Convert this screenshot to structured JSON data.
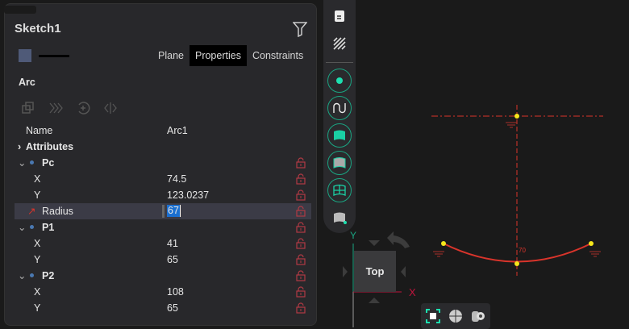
{
  "panel": {
    "title": "Sketch1",
    "tabs": [
      {
        "label": "Plane"
      },
      {
        "label": "Properties",
        "active": true
      },
      {
        "label": "Constraints"
      }
    ],
    "section": "Arc",
    "color_swatch": "#4f5a78"
  },
  "properties": {
    "name_label": "Name",
    "name_value": "Arc1",
    "attributes_label": "Attributes",
    "rows": [
      {
        "label": "Pc",
        "value": "",
        "group": true
      },
      {
        "label": "X",
        "value": "74.5"
      },
      {
        "label": "Y",
        "value": "123.0237"
      },
      {
        "label": "Radius",
        "value": "67",
        "selected": true
      },
      {
        "label": "P1",
        "value": "",
        "group": true
      },
      {
        "label": "X",
        "value": "41"
      },
      {
        "label": "Y",
        "value": "65"
      },
      {
        "label": "P2",
        "value": "",
        "group": true
      },
      {
        "label": "X",
        "value": "108"
      },
      {
        "label": "Y",
        "value": "65"
      }
    ]
  },
  "viewport": {
    "view_label": "Top",
    "axis_x": "X",
    "axis_y": "Y",
    "dimension_label": "70",
    "sketch_color": "#d9342b",
    "point_color": "#f5e61b",
    "accent": "#1aa582"
  }
}
